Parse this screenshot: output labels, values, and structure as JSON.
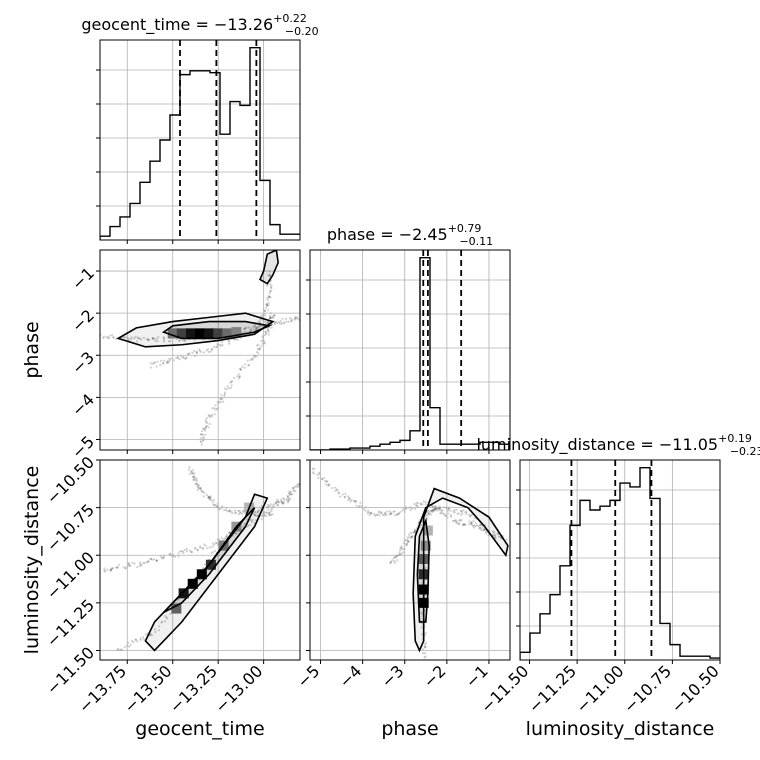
{
  "chart_data": {
    "type": "corner",
    "parameters": [
      {
        "name": "geocent_time",
        "xlabel": "geocent_time",
        "range": [
          -13.9,
          -12.8
        ],
        "ticks": [
          -13.75,
          -13.5,
          -13.25,
          -13.0
        ],
        "tick_labels": [
          "−13.75",
          "−13.50",
          "−13.25",
          "−13.00"
        ],
        "title": {
          "prefix": "geocent_time = ",
          "value": "−13.26",
          "plus": "+0.22",
          "minus": "−0.20"
        },
        "quantiles": [
          -13.46,
          -13.26,
          -13.04
        ],
        "histogram": {
          "edges": [
            -13.9,
            -13.845,
            -13.79,
            -13.735,
            -13.68,
            -13.625,
            -13.57,
            -13.515,
            -13.46,
            -13.405,
            -13.35,
            -13.295,
            -13.24,
            -13.185,
            -13.13,
            -13.075,
            -13.02,
            -12.965,
            -12.91,
            -12.855,
            -12.8
          ],
          "counts": [
            2,
            7,
            12,
            19,
            30,
            41,
            52,
            65,
            86,
            88,
            88,
            87,
            55,
            72,
            70,
            100,
            31,
            8,
            3,
            3
          ]
        }
      },
      {
        "name": "phase",
        "xlabel": "phase",
        "ylabel": "phase",
        "range": [
          -5.25,
          -0.5
        ],
        "ticks": [
          -5,
          -4,
          -3,
          -2,
          -1
        ],
        "tick_labels": [
          "−5",
          "−4",
          "−3",
          "−2",
          "−1"
        ],
        "title": {
          "prefix": "phase = ",
          "value": "−2.45",
          "plus": "+0.79",
          "minus": "−0.11"
        },
        "quantiles": [
          -2.56,
          -2.45,
          -1.66
        ],
        "histogram": {
          "edges": [
            -5.25,
            -5.0125,
            -4.775,
            -4.5375,
            -4.3,
            -4.0625,
            -3.825,
            -3.5875,
            -3.35,
            -3.1125,
            -2.875,
            -2.6375,
            -2.4,
            -2.1625,
            -1.925,
            -1.6875,
            -1.45,
            -1.2125,
            -0.975,
            -0.7375,
            -0.5
          ],
          "counts": [
            0,
            0,
            0.5,
            0.5,
            1,
            1,
            2,
            3,
            4,
            5,
            10,
            100,
            22,
            3,
            3,
            3,
            3,
            4,
            4,
            3
          ]
        }
      },
      {
        "name": "luminosity_distance",
        "xlabel": "luminosity_distance",
        "ylabel": "luminosity_distance",
        "range": [
          -11.55,
          -10.5
        ],
        "ticks": [
          -11.5,
          -11.25,
          -11.0,
          -10.75,
          -10.5
        ],
        "tick_labels": [
          "−11.50",
          "−11.25",
          "−11.00",
          "−10.75",
          "−10.50"
        ],
        "title": {
          "prefix": "luminosity_distance = ",
          "value": "−11.05",
          "plus": "+0.19",
          "minus": "−0.23"
        },
        "quantiles": [
          -11.28,
          -11.05,
          -10.86
        ],
        "histogram": {
          "edges": [
            -11.55,
            -11.4975,
            -11.445,
            -11.3925,
            -11.34,
            -11.2875,
            -11.235,
            -11.1825,
            -11.13,
            -11.0775,
            -11.025,
            -10.9725,
            -10.92,
            -10.8675,
            -10.815,
            -10.7625,
            -10.71,
            -10.6575,
            -10.605,
            -10.5525,
            -10.5
          ],
          "counts": [
            4,
            14,
            24,
            34,
            49,
            70,
            83,
            78,
            80,
            83,
            92,
            90,
            100,
            84,
            19,
            8,
            2,
            2,
            2,
            1
          ]
        }
      }
    ],
    "pairs": [
      {
        "x": "geocent_time",
        "y": "phase",
        "contours": [
          [
            [
              -13.8,
              -2.6
            ],
            [
              -13.65,
              -2.8
            ],
            [
              -13.45,
              -2.75
            ],
            [
              -13.25,
              -2.65
            ],
            [
              -13.05,
              -2.5
            ],
            [
              -12.95,
              -2.2
            ],
            [
              -13.1,
              -2.0
            ],
            [
              -13.3,
              -2.1
            ],
            [
              -13.5,
              -2.2
            ],
            [
              -13.7,
              -2.35
            ]
          ],
          [
            [
              -13.55,
              -2.45
            ],
            [
              -13.45,
              -2.6
            ],
            [
              -13.25,
              -2.6
            ],
            [
              -13.05,
              -2.45
            ],
            [
              -12.97,
              -2.3
            ],
            [
              -13.1,
              -2.2
            ],
            [
              -13.3,
              -2.2
            ],
            [
              -13.5,
              -2.3
            ]
          ],
          [
            [
              -13.0,
              -1.0
            ],
            [
              -12.98,
              -0.6
            ],
            [
              -12.93,
              -0.5
            ],
            [
              -12.92,
              -0.8
            ],
            [
              -12.95,
              -1.1
            ],
            [
              -12.98,
              -1.3
            ],
            [
              -13.02,
              -1.2
            ]
          ]
        ],
        "density": [
          {
            "x": -13.5,
            "y": -2.48,
            "v": 0.5
          },
          {
            "x": -13.45,
            "y": -2.48,
            "v": 0.7
          },
          {
            "x": -13.4,
            "y": -2.48,
            "v": 0.9
          },
          {
            "x": -13.35,
            "y": -2.48,
            "v": 1.0
          },
          {
            "x": -13.3,
            "y": -2.48,
            "v": 0.9
          },
          {
            "x": -13.25,
            "y": -2.48,
            "v": 0.7
          },
          {
            "x": -13.2,
            "y": -2.48,
            "v": 0.5
          },
          {
            "x": -13.15,
            "y": -2.45,
            "v": 0.4
          }
        ]
      },
      {
        "x": "geocent_time",
        "y": "luminosity_distance",
        "contours": [
          [
            [
              -13.65,
              -11.45
            ],
            [
              -13.6,
              -11.35
            ],
            [
              -13.45,
              -11.2
            ],
            [
              -13.3,
              -11.05
            ],
            [
              -13.1,
              -10.8
            ],
            [
              -13.05,
              -10.68
            ],
            [
              -12.98,
              -10.7
            ],
            [
              -13.05,
              -10.85
            ],
            [
              -13.25,
              -11.1
            ],
            [
              -13.45,
              -11.35
            ],
            [
              -13.6,
              -11.5
            ]
          ],
          [
            [
              -13.55,
              -11.3
            ],
            [
              -13.45,
              -11.2
            ],
            [
              -13.3,
              -11.05
            ],
            [
              -13.15,
              -10.85
            ],
            [
              -13.05,
              -10.75
            ],
            [
              -13.1,
              -10.85
            ],
            [
              -13.3,
              -11.1
            ],
            [
              -13.45,
              -11.25
            ]
          ]
        ],
        "density": [
          {
            "x": -13.48,
            "y": -11.28,
            "v": 0.6
          },
          {
            "x": -13.44,
            "y": -11.2,
            "v": 0.9
          },
          {
            "x": -13.39,
            "y": -11.15,
            "v": 1.0
          },
          {
            "x": -13.34,
            "y": -11.1,
            "v": 1.0
          },
          {
            "x": -13.29,
            "y": -11.05,
            "v": 0.8
          },
          {
            "x": -13.22,
            "y": -10.95,
            "v": 0.5
          },
          {
            "x": -13.15,
            "y": -10.85,
            "v": 0.4
          },
          {
            "x": -13.08,
            "y": -10.75,
            "v": 0.3
          }
        ]
      },
      {
        "x": "phase",
        "y": "luminosity_distance",
        "contours": [
          [
            [
              -2.75,
              -11.45
            ],
            [
              -2.8,
              -11.2
            ],
            [
              -2.75,
              -10.9
            ],
            [
              -2.5,
              -10.75
            ],
            [
              -2.1,
              -10.7
            ],
            [
              -1.5,
              -10.75
            ],
            [
              -1.1,
              -10.85
            ],
            [
              -0.6,
              -11.0
            ],
            [
              -0.55,
              -10.95
            ],
            [
              -1.0,
              -10.8
            ],
            [
              -1.7,
              -10.7
            ],
            [
              -2.3,
              -10.65
            ],
            [
              -2.55,
              -10.8
            ],
            [
              -2.55,
              -11.1
            ],
            [
              -2.55,
              -11.45
            ],
            [
              -2.65,
              -11.5
            ]
          ],
          [
            [
              -2.65,
              -11.35
            ],
            [
              -2.7,
              -11.1
            ],
            [
              -2.65,
              -10.9
            ],
            [
              -2.5,
              -10.82
            ],
            [
              -2.42,
              -10.95
            ],
            [
              -2.45,
              -11.2
            ],
            [
              -2.5,
              -11.35
            ]
          ]
        ],
        "density": [
          {
            "x": -2.55,
            "y": -11.25,
            "v": 1.0
          },
          {
            "x": -2.55,
            "y": -11.18,
            "v": 1.0
          },
          {
            "x": -2.55,
            "y": -11.1,
            "v": 0.8
          },
          {
            "x": -2.55,
            "y": -11.02,
            "v": 0.6
          },
          {
            "x": -2.5,
            "y": -10.95,
            "v": 0.4
          },
          {
            "x": -2.45,
            "y": -10.87,
            "v": 0.3
          }
        ]
      }
    ],
    "scatter": [
      {
        "x": "geocent_time",
        "y": "phase",
        "tracks": [
          [
            [
              -13.9,
              -2.55
            ],
            [
              -13.7,
              -2.62
            ],
            [
              -13.5,
              -2.62
            ],
            [
              -13.3,
              -2.55
            ],
            [
              -13.1,
              -2.42
            ],
            [
              -12.95,
              -2.22
            ],
            [
              -12.8,
              -2.12
            ]
          ],
          [
            [
              -13.62,
              -3.25
            ],
            [
              -13.45,
              -3.05
            ],
            [
              -13.25,
              -2.8
            ],
            [
              -13.05,
              -2.4
            ],
            [
              -12.97,
              -1.8
            ],
            [
              -12.97,
              -1.0
            ]
          ],
          [
            [
              -13.35,
              -5.1
            ],
            [
              -13.3,
              -4.5
            ],
            [
              -13.2,
              -3.8
            ],
            [
              -13.05,
              -3.0
            ],
            [
              -12.97,
              -2.4
            ],
            [
              -12.95,
              -2.0
            ]
          ]
        ]
      },
      {
        "x": "geocent_time",
        "y": "luminosity_distance",
        "tracks": [
          [
            [
              -13.9,
              -11.08
            ],
            [
              -13.7,
              -11.05
            ],
            [
              -13.5,
              -11.0
            ],
            [
              -13.3,
              -10.95
            ],
            [
              -13.1,
              -10.85
            ],
            [
              -12.9,
              -10.72
            ],
            [
              -12.8,
              -10.62
            ]
          ],
          [
            [
              -13.8,
              -11.5
            ],
            [
              -13.6,
              -11.4
            ],
            [
              -13.4,
              -11.15
            ],
            [
              -13.2,
              -10.9
            ],
            [
              -13.0,
              -10.75
            ],
            [
              -12.85,
              -10.7
            ]
          ],
          [
            [
              -13.4,
              -10.55
            ],
            [
              -13.35,
              -10.65
            ],
            [
              -13.25,
              -10.75
            ],
            [
              -13.1,
              -10.78
            ],
            [
              -12.95,
              -10.78
            ]
          ]
        ]
      },
      {
        "x": "phase",
        "y": "luminosity_distance",
        "tracks": [
          [
            [
              -5.2,
              -10.55
            ],
            [
              -4.5,
              -10.68
            ],
            [
              -3.8,
              -10.78
            ],
            [
              -3.2,
              -10.78
            ],
            [
              -2.5,
              -10.72
            ],
            [
              -1.8,
              -10.82
            ],
            [
              -1.2,
              -10.85
            ],
            [
              -0.6,
              -10.92
            ]
          ],
          [
            [
              -3.3,
              -11.05
            ],
            [
              -3.0,
              -10.95
            ],
            [
              -2.7,
              -10.85
            ],
            [
              -2.45,
              -10.78
            ],
            [
              -2.2,
              -10.75
            ],
            [
              -1.5,
              -10.78
            ],
            [
              -0.8,
              -10.92
            ]
          ],
          [
            [
              -2.55,
              -11.55
            ],
            [
              -2.55,
              -11.3
            ],
            [
              -2.55,
              -11.05
            ]
          ]
        ]
      }
    ]
  }
}
